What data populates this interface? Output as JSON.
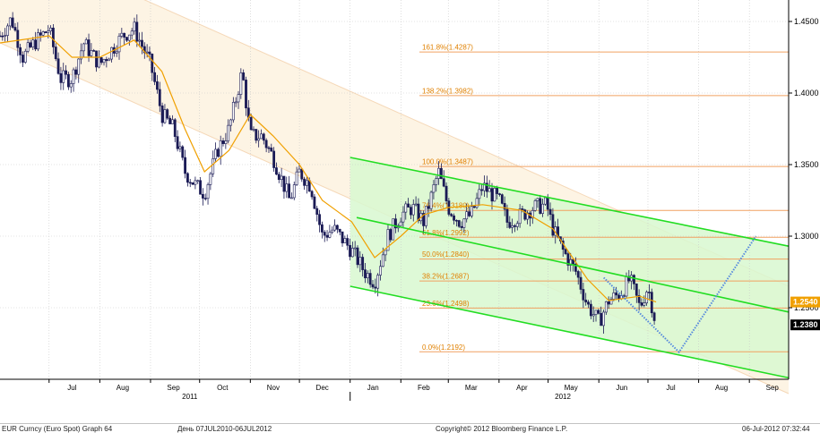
{
  "chart_data": {
    "type": "candlestick",
    "instrument": "EUR Curncy (Euro Spot)",
    "y_ticks": [
      "1.2500",
      "1.3000",
      "1.3500",
      "1.4000",
      "1.4500"
    ],
    "y_tick_values": [
      1.25,
      1.3,
      1.35,
      1.4,
      1.45
    ],
    "ylim": [
      1.2,
      1.465
    ],
    "x_month_labels": [
      "Jul",
      "Aug",
      "Sep",
      "Oct",
      "Nov",
      "Dec",
      "Jan",
      "Feb",
      "Mar",
      "Apr",
      "May",
      "Jun",
      "Jul",
      "Aug",
      "Sep"
    ],
    "x_year_labels": [
      "2011",
      "2012"
    ],
    "date_range": [
      "2010-07-07",
      "2012-07-06"
    ],
    "price_labels": [
      {
        "text": "1.2540",
        "value": 1.254,
        "color": "#f0a000"
      },
      {
        "text": "1.2380",
        "value": 1.238,
        "color": "#000000"
      }
    ],
    "fibonacci_levels": [
      {
        "label": "0.0%(1.2192)",
        "value": 1.2192
      },
      {
        "label": "23.6%(1.2498)",
        "value": 1.2498
      },
      {
        "label": "38.2%(1.2687)",
        "value": 1.2687
      },
      {
        "label": "50.0%(1.2840)",
        "value": 1.284
      },
      {
        "label": "61.8%(1.2992)",
        "value": 1.2992
      },
      {
        "label": "76.4%(1.3180)",
        "value": 1.318
      },
      {
        "label": "100.0%(1.3487)",
        "value": 1.3487
      },
      {
        "label": "138.2%(1.3982)",
        "value": 1.3982
      },
      {
        "label": "161.8%(1.4287)",
        "value": 1.4287
      }
    ],
    "close_series": [
      [
        "2011-06-01",
        1.44
      ],
      [
        "2011-06-08",
        1.452
      ],
      [
        "2011-06-15",
        1.425
      ],
      [
        "2011-06-22",
        1.435
      ],
      [
        "2011-07-01",
        1.445
      ],
      [
        "2011-07-08",
        1.41
      ],
      [
        "2011-07-15",
        1.41
      ],
      [
        "2011-07-22",
        1.435
      ],
      [
        "2011-08-01",
        1.42
      ],
      [
        "2011-08-08",
        1.43
      ],
      [
        "2011-08-15",
        1.44
      ],
      [
        "2011-08-22",
        1.445
      ],
      [
        "2011-09-01",
        1.42
      ],
      [
        "2011-09-08",
        1.385
      ],
      [
        "2011-09-15",
        1.375
      ],
      [
        "2011-09-22",
        1.345
      ],
      [
        "2011-09-29",
        1.335
      ],
      [
        "2011-10-04",
        1.33
      ],
      [
        "2011-10-12",
        1.36
      ],
      [
        "2011-10-19",
        1.375
      ],
      [
        "2011-10-27",
        1.415
      ],
      [
        "2011-11-01",
        1.37
      ],
      [
        "2011-11-08",
        1.37
      ],
      [
        "2011-11-15",
        1.355
      ],
      [
        "2011-11-25",
        1.325
      ],
      [
        "2011-12-01",
        1.345
      ],
      [
        "2011-12-08",
        1.335
      ],
      [
        "2011-12-15",
        1.3
      ],
      [
        "2011-12-22",
        1.305
      ],
      [
        "2012-01-02",
        1.29
      ],
      [
        "2012-01-10",
        1.275
      ],
      [
        "2012-01-16",
        1.268
      ],
      [
        "2012-01-24",
        1.3
      ],
      [
        "2012-02-01",
        1.315
      ],
      [
        "2012-02-08",
        1.32
      ],
      [
        "2012-02-15",
        1.31
      ],
      [
        "2012-02-24",
        1.345
      ],
      [
        "2012-03-01",
        1.32
      ],
      [
        "2012-03-08",
        1.31
      ],
      [
        "2012-03-15",
        1.315
      ],
      [
        "2012-03-22",
        1.335
      ],
      [
        "2012-04-01",
        1.325
      ],
      [
        "2012-04-06",
        1.31
      ],
      [
        "2012-04-15",
        1.315
      ],
      [
        "2012-04-22",
        1.32
      ],
      [
        "2012-04-30",
        1.322
      ],
      [
        "2012-05-04",
        1.305
      ],
      [
        "2012-05-10",
        1.29
      ],
      [
        "2012-05-18",
        1.275
      ],
      [
        "2012-05-25",
        1.252
      ],
      [
        "2012-06-01",
        1.24
      ],
      [
        "2012-06-07",
        1.255
      ],
      [
        "2012-06-14",
        1.26
      ],
      [
        "2012-06-20",
        1.27
      ],
      [
        "2012-06-26",
        1.25
      ],
      [
        "2012-07-01",
        1.265
      ],
      [
        "2012-07-06",
        1.238
      ]
    ],
    "moving_average": [
      [
        "2011-06-01",
        1.435
      ],
      [
        "2011-07-01",
        1.44
      ],
      [
        "2011-07-15",
        1.425
      ],
      [
        "2011-08-01",
        1.425
      ],
      [
        "2011-08-22",
        1.437
      ],
      [
        "2011-09-08",
        1.415
      ],
      [
        "2011-09-22",
        1.375
      ],
      [
        "2011-10-04",
        1.345
      ],
      [
        "2011-10-19",
        1.36
      ],
      [
        "2011-11-01",
        1.385
      ],
      [
        "2011-11-15",
        1.37
      ],
      [
        "2011-12-01",
        1.35
      ],
      [
        "2011-12-15",
        1.325
      ],
      [
        "2012-01-02",
        1.31
      ],
      [
        "2012-01-16",
        1.285
      ],
      [
        "2012-02-01",
        1.3
      ],
      [
        "2012-02-15",
        1.315
      ],
      [
        "2012-03-01",
        1.32
      ],
      [
        "2012-03-22",
        1.322
      ],
      [
        "2012-04-15",
        1.318
      ],
      [
        "2012-05-04",
        1.305
      ],
      [
        "2012-05-25",
        1.27
      ],
      [
        "2012-06-07",
        1.255
      ],
      [
        "2012-06-26",
        1.258
      ],
      [
        "2012-07-06",
        1.254
      ]
    ],
    "projection_path": [
      [
        "2012-06-04",
        1.271
      ],
      [
        "2012-07-20",
        1.219
      ],
      [
        "2012-09-05",
        1.3
      ]
    ],
    "regression_channel_2012": {
      "upper": [
        [
          "2012-01-01",
          1.355
        ],
        [
          "2012-09-25",
          1.293
        ]
      ],
      "middle": [
        [
          "2012-01-05",
          1.313
        ],
        [
          "2012-09-25",
          1.247
        ]
      ],
      "lower": [
        [
          "2012-01-01",
          1.265
        ],
        [
          "2012-09-25",
          1.201
        ]
      ]
    },
    "background_channel": {
      "upper": [
        [
          "2011-06-01",
          1.51
        ],
        [
          "2012-09-25",
          1.265
        ]
      ],
      "lower": [
        [
          "2011-06-01",
          1.435
        ],
        [
          "2012-09-25",
          1.19
        ]
      ]
    },
    "colors": {
      "candles": "#1a1a55",
      "moving_average": "#f0a000",
      "channel": "#22dd22",
      "fib_lines": "#f0a060",
      "fib_text": "#e08000",
      "projection": "#5588dd",
      "shade_2012": "#d8f8d0",
      "shade_2011": "#fdf4e4"
    },
    "grid": true
  },
  "footer": {
    "left": "EUR Curncy (Euro Spot) Graph 64",
    "range": "День 07JUL2010-06JUL2012",
    "center": "Copyright© 2012 Bloomberg Finance L.P.",
    "right": "06-Jul-2012 07:32:44"
  }
}
